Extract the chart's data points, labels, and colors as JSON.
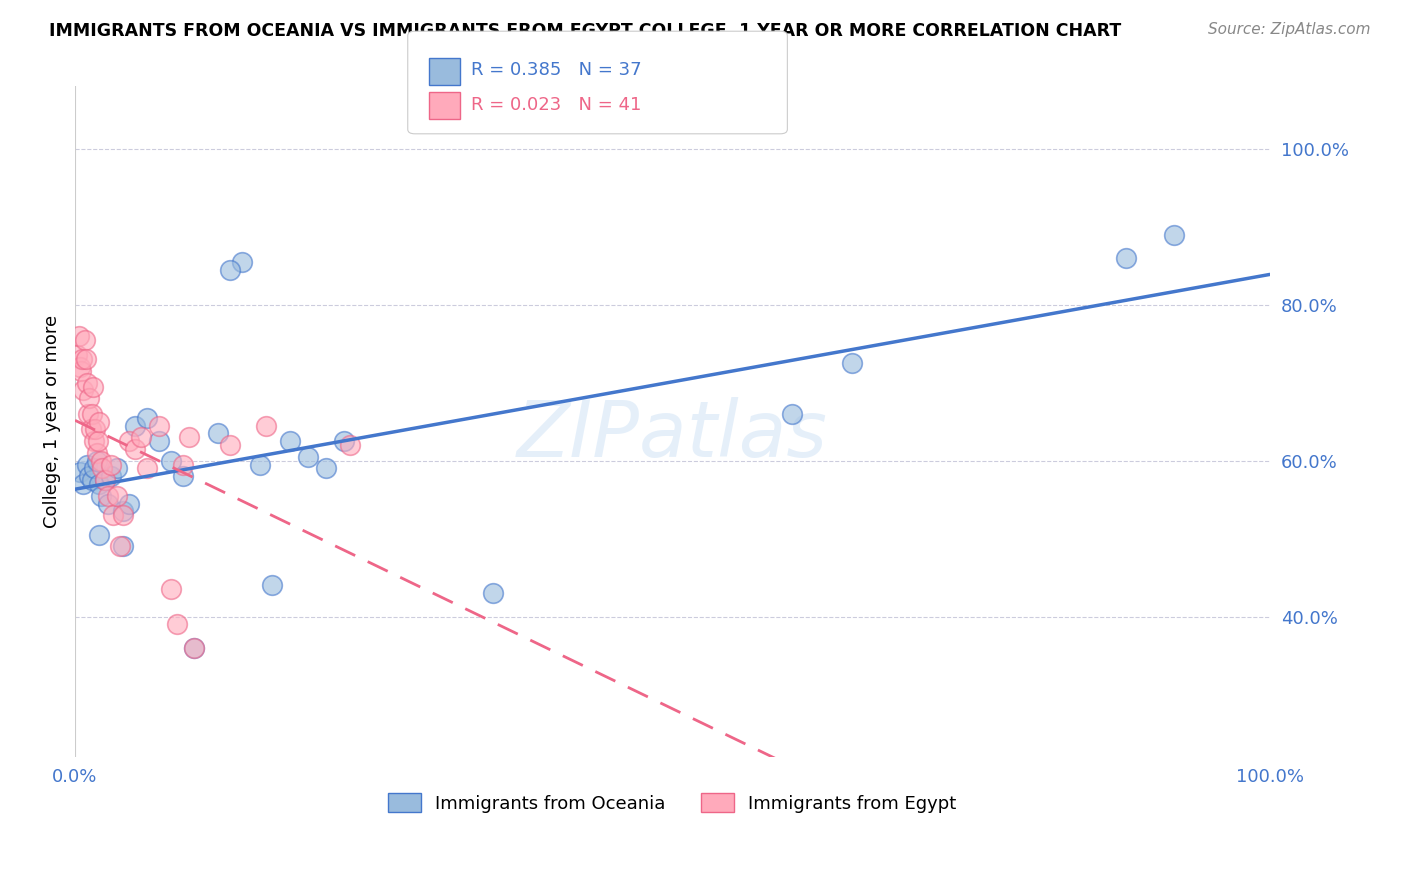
{
  "title": "IMMIGRANTS FROM OCEANIA VS IMMIGRANTS FROM EGYPT COLLEGE, 1 YEAR OR MORE CORRELATION CHART",
  "source": "Source: ZipAtlas.com",
  "ylabel": "College, 1 year or more",
  "legend_oceania": "Immigrants from Oceania",
  "legend_egypt": "Immigrants from Egypt",
  "R_oceania": 0.385,
  "N_oceania": 37,
  "R_egypt": 0.023,
  "N_egypt": 41,
  "color_oceania": "#99BBDD",
  "color_egypt": "#FFAABB",
  "color_line_oceania": "#4477CC",
  "color_line_egypt": "#EE6688",
  "watermark": "ZIPatlas",
  "xlim": [
    0.0,
    1.0
  ],
  "ylim": [
    0.22,
    1.08
  ],
  "y_tick_labels": [
    "100.0%",
    "80.0%",
    "60.0%",
    "40.0%"
  ],
  "y_tick_positions": [
    1.0,
    0.8,
    0.6,
    0.4
  ],
  "oceania_x": [
    0.004,
    0.007,
    0.01,
    0.012,
    0.014,
    0.016,
    0.018,
    0.02,
    0.022,
    0.025,
    0.028,
    0.03,
    0.035,
    0.04,
    0.045,
    0.05,
    0.06,
    0.07,
    0.08,
    0.09,
    0.1,
    0.12,
    0.14,
    0.155,
    0.165,
    0.18,
    0.195,
    0.21,
    0.225,
    0.35,
    0.6,
    0.65,
    0.88,
    0.92,
    0.13,
    0.04,
    0.02
  ],
  "oceania_y": [
    0.585,
    0.57,
    0.595,
    0.58,
    0.575,
    0.59,
    0.6,
    0.57,
    0.555,
    0.575,
    0.545,
    0.58,
    0.59,
    0.535,
    0.545,
    0.645,
    0.655,
    0.625,
    0.6,
    0.58,
    0.36,
    0.635,
    0.855,
    0.595,
    0.44,
    0.625,
    0.605,
    0.59,
    0.625,
    0.43,
    0.66,
    0.725,
    0.86,
    0.89,
    0.845,
    0.49,
    0.505
  ],
  "egypt_x": [
    0.002,
    0.003,
    0.004,
    0.005,
    0.006,
    0.007,
    0.008,
    0.009,
    0.01,
    0.011,
    0.012,
    0.013,
    0.014,
    0.015,
    0.016,
    0.017,
    0.018,
    0.019,
    0.02,
    0.022,
    0.023,
    0.025,
    0.028,
    0.03,
    0.032,
    0.035,
    0.038,
    0.04,
    0.045,
    0.05,
    0.055,
    0.06,
    0.07,
    0.08,
    0.085,
    0.09,
    0.095,
    0.1,
    0.13,
    0.16,
    0.23
  ],
  "egypt_y": [
    0.735,
    0.76,
    0.72,
    0.715,
    0.73,
    0.69,
    0.755,
    0.73,
    0.7,
    0.66,
    0.68,
    0.64,
    0.66,
    0.695,
    0.625,
    0.64,
    0.61,
    0.625,
    0.65,
    0.6,
    0.59,
    0.575,
    0.555,
    0.595,
    0.53,
    0.555,
    0.49,
    0.53,
    0.625,
    0.615,
    0.63,
    0.59,
    0.645,
    0.435,
    0.39,
    0.595,
    0.63,
    0.36,
    0.62,
    0.645,
    0.62
  ]
}
